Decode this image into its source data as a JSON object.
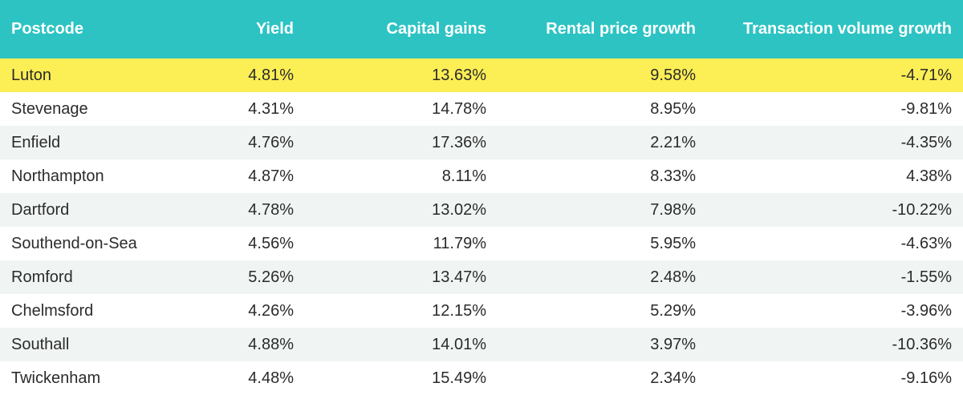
{
  "colors": {
    "header_bg": "#2dc3c3",
    "header_text": "#ffffff",
    "highlight_row": "#fcee55",
    "stripe_row": "#f0f5f3"
  },
  "headers": [
    "Postcode",
    "Yield",
    "Capital gains",
    "Rental price growth",
    "Transaction volume growth"
  ],
  "rows": [
    {
      "postcode": "Luton",
      "yield": "4.81%",
      "capital_gains": "13.63%",
      "rental_growth": "9.58%",
      "transaction_growth": "-4.71%",
      "highlighted": true
    },
    {
      "postcode": "Stevenage",
      "yield": "4.31%",
      "capital_gains": "14.78%",
      "rental_growth": "8.95%",
      "transaction_growth": "-9.81%"
    },
    {
      "postcode": "Enfield",
      "yield": "4.76%",
      "capital_gains": "17.36%",
      "rental_growth": "2.21%",
      "transaction_growth": "-4.35%"
    },
    {
      "postcode": "Northampton",
      "yield": "4.87%",
      "capital_gains": "8.11%",
      "rental_growth": "8.33%",
      "transaction_growth": "4.38%"
    },
    {
      "postcode": "Dartford",
      "yield": "4.78%",
      "capital_gains": "13.02%",
      "rental_growth": "7.98%",
      "transaction_growth": "-10.22%"
    },
    {
      "postcode": "Southend-on-Sea",
      "yield": "4.56%",
      "capital_gains": "11.79%",
      "rental_growth": "5.95%",
      "transaction_growth": "-4.63%"
    },
    {
      "postcode": "Romford",
      "yield": "5.26%",
      "capital_gains": "13.47%",
      "rental_growth": "2.48%",
      "transaction_growth": "-1.55%"
    },
    {
      "postcode": "Chelmsford",
      "yield": "4.26%",
      "capital_gains": "12.15%",
      "rental_growth": "5.29%",
      "transaction_growth": "-3.96%"
    },
    {
      "postcode": "Southall",
      "yield": "4.88%",
      "capital_gains": "14.01%",
      "rental_growth": "3.97%",
      "transaction_growth": "-10.36%"
    },
    {
      "postcode": "Twickenham",
      "yield": "4.48%",
      "capital_gains": "15.49%",
      "rental_growth": "2.34%",
      "transaction_growth": "-9.16%"
    }
  ]
}
